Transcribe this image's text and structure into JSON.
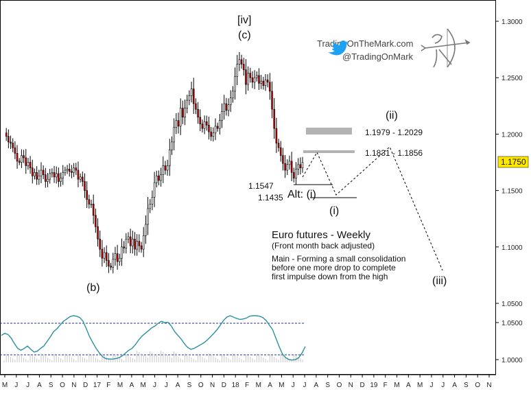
{
  "watermark": {
    "site": "TradingOnTheMark.com",
    "handle": "@TradingOnMark"
  },
  "annotation": {
    "title": "Euro futures - Weekly",
    "subtitle": "(Front month back adjusted)",
    "note_lines": [
      "Main - Forming a small consolidation",
      "before one more drop to complete",
      "first impulse down from the high"
    ]
  },
  "wave_labels": {
    "iv": "[iv]",
    "c": "(c)",
    "b": "(b)",
    "i": "(i)",
    "alt_i": "Alt: (i)",
    "ii": "(ii)",
    "iii": "(iii)"
  },
  "level_labels": {
    "upper_zone": "1.1979 - 1.2029",
    "lower_zone": "1.1831 - 1.1856",
    "low_a": "1.1547",
    "low_b": "1.1435"
  },
  "last_price": "1.1750",
  "colors": {
    "up_candle": "#ffffff",
    "down_candle": "#cc0000",
    "oscillator": "#2a8fa0",
    "oscillator_guides": "#1f2f8f",
    "zone_gray": "#b3b3b3",
    "price_tag_fill": "#ffe800",
    "twitter_blue": "#1da1f2"
  },
  "chart_data": {
    "type": "candlestick",
    "y_axis": {
      "ticks": [
        "1.3000",
        "1.2500",
        "1.2000",
        "1.1500",
        "1.1000",
        "1.0500"
      ],
      "range": [
        1.02,
        1.31
      ]
    },
    "x_axis": {
      "tick_labels": [
        "M",
        "J",
        "J",
        "A",
        "S",
        "O",
        "N",
        "D",
        "17",
        "F",
        "M",
        "A",
        "M",
        "J",
        "J",
        "A",
        "S",
        "O",
        "N",
        "D",
        "18",
        "F",
        "M",
        "A",
        "M",
        "J",
        "J",
        "A",
        "S",
        "O",
        "N",
        "D",
        "19",
        "F",
        "M",
        "A",
        "M",
        "J",
        "J",
        "A",
        "S",
        "O",
        "N"
      ]
    },
    "closes": [
      1.201,
      1.198,
      1.193,
      1.192,
      1.188,
      1.183,
      1.176,
      1.175,
      1.181,
      1.179,
      1.172,
      1.175,
      1.17,
      1.163,
      1.166,
      1.16,
      1.163,
      1.168,
      1.164,
      1.158,
      1.16,
      1.165,
      1.166,
      1.162,
      1.165,
      1.158,
      1.161,
      1.166,
      1.168,
      1.169,
      1.167,
      1.166,
      1.17,
      1.168,
      1.16,
      1.162,
      1.158,
      1.15,
      1.142,
      1.138,
      1.138,
      1.128,
      1.118,
      1.107,
      1.098,
      1.09,
      1.095,
      1.088,
      1.083,
      1.082,
      1.089,
      1.094,
      1.087,
      1.09,
      1.1,
      1.099,
      1.107,
      1.109,
      1.101,
      1.107,
      1.098,
      1.105,
      1.101,
      1.098,
      1.11,
      1.12,
      1.134,
      1.138,
      1.144,
      1.157,
      1.163,
      1.159,
      1.164,
      1.172,
      1.168,
      1.172,
      1.186,
      1.193,
      1.206,
      1.212,
      1.207,
      1.223,
      1.215,
      1.223,
      1.23,
      1.234,
      1.24,
      1.227,
      1.222,
      1.215,
      1.209,
      1.205,
      1.211,
      1.208,
      1.202,
      1.198,
      1.201,
      1.207,
      1.205,
      1.212,
      1.22,
      1.227,
      1.221,
      1.226,
      1.232,
      1.238,
      1.251,
      1.262,
      1.266,
      1.262,
      1.257,
      1.244,
      1.254,
      1.25,
      1.246,
      1.25,
      1.252,
      1.245,
      1.247,
      1.243,
      1.248,
      1.246,
      1.238,
      1.222,
      1.205,
      1.192,
      1.188,
      1.181,
      1.174,
      1.168,
      1.173,
      1.176,
      1.166,
      1.161,
      1.169,
      1.173,
      1.17,
      1.175
    ],
    "oscillator": [
      0.58,
      0.62,
      0.6,
      0.52,
      0.4,
      0.3,
      0.26,
      0.3,
      0.35,
      0.28,
      0.22,
      0.24,
      0.3,
      0.35,
      0.45,
      0.55,
      0.66,
      0.72,
      0.8,
      0.88,
      0.93,
      0.98,
      1.0,
      0.99,
      0.96,
      0.88,
      0.72,
      0.55,
      0.42,
      0.3,
      0.2,
      0.12,
      0.08,
      0.07,
      0.07,
      0.08,
      0.1,
      0.14,
      0.2,
      0.26,
      0.3,
      0.38,
      0.48,
      0.56,
      0.62,
      0.68,
      0.74,
      0.78,
      0.84,
      0.88,
      0.85,
      0.86,
      0.78,
      0.66,
      0.58,
      0.5,
      0.4,
      0.32,
      0.28,
      0.3,
      0.34,
      0.38,
      0.42,
      0.48,
      0.55,
      0.62,
      0.7,
      0.8,
      0.9,
      0.97,
      1.0,
      0.97,
      0.94,
      0.92,
      0.93,
      0.95,
      0.99,
      1.0,
      1.0,
      0.99,
      0.96,
      0.9,
      0.8,
      0.7,
      0.52,
      0.34,
      0.18,
      0.1,
      0.06,
      0.05,
      0.06,
      0.1,
      0.2,
      0.34
    ],
    "oscillator_levels": [
      0.85,
      0.12
    ]
  }
}
